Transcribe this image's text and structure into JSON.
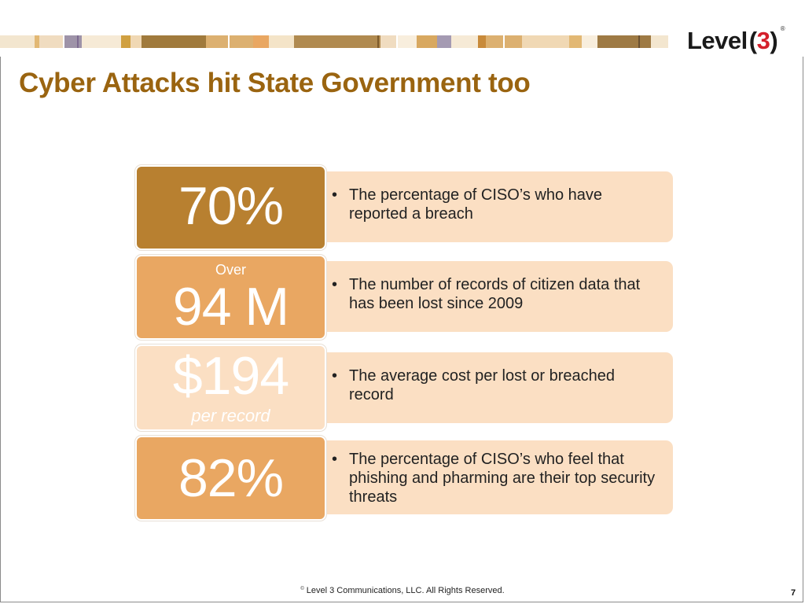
{
  "slide": {
    "title": "Cyber Attacks hit State Government too"
  },
  "logo": {
    "word": "Level",
    "open_paren": "(",
    "number": "3",
    "close_paren": ")",
    "registered": "®"
  },
  "stats": [
    {
      "above": "",
      "value": "70%",
      "below": "",
      "description": "The percentage of CISO’s who have reported a breach"
    },
    {
      "above": "Over",
      "value": "94 M",
      "below": "",
      "description": "The number of records of citizen data that has been lost since 2009"
    },
    {
      "above": "",
      "value": "$194",
      "below": "per record",
      "description": "The average cost per lost or breached record"
    },
    {
      "above": "",
      "value": "82%",
      "below": "",
      "description": "The percentage of CISO’s who feel that phishing and pharming are their top security threats"
    }
  ],
  "footer": {
    "copyright_symbol": "©",
    "text": "Level 3 Communications, LLC.  All Rights Reserved.",
    "page_number": "7"
  },
  "colors": {
    "title": "#9a6410",
    "stat_dark": "#b88030",
    "stat_medium": "#e9a762",
    "stat_light": "#fbdfc3",
    "description_bg": "#fbdfc3",
    "logo_accent": "#d4202b"
  }
}
